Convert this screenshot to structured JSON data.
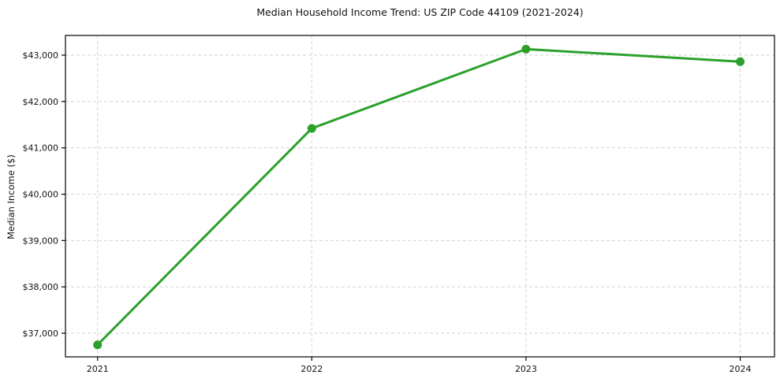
{
  "title": "Median Household Income Trend: US ZIP Code 44109 (2021-2024)",
  "chart_data": {
    "type": "line",
    "title": "Median Household Income Trend: US ZIP Code 44109 (2021-2024)",
    "xlabel": "",
    "ylabel": "Median Income ($)",
    "x": [
      2021,
      2022,
      2023,
      2024
    ],
    "x_tick_labels": [
      "2021",
      "2022",
      "2023",
      "2024"
    ],
    "series": [
      {
        "name": "Median Household Income",
        "values": [
          36750,
          41420,
          43130,
          42860
        ]
      }
    ],
    "y_ticks": [
      37000,
      38000,
      39000,
      40000,
      41000,
      42000,
      43000
    ],
    "y_tick_labels": [
      "$37,000",
      "$38,000",
      "$39,000",
      "$40,000",
      "$41,000",
      "$42,000",
      "$43,000"
    ],
    "xlim": [
      2020.85,
      2024.16
    ],
    "ylim": [
      36490,
      43425
    ],
    "grid": true,
    "grid_style": "dashed",
    "legend": "none",
    "colors": {
      "line": "#2ca02c",
      "marker": "#2ca02c",
      "grid": "#d2d2d2",
      "axis": "#000000",
      "text": "#111111",
      "background": "#ffffff"
    }
  }
}
